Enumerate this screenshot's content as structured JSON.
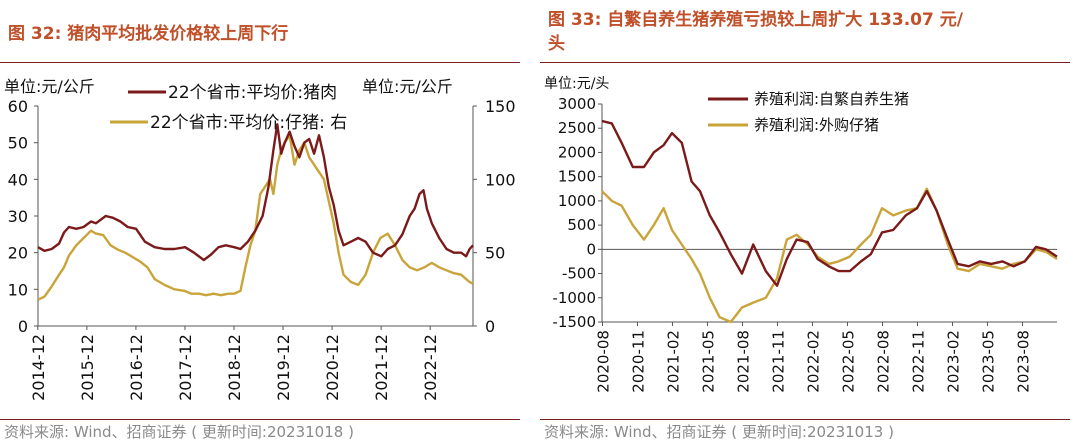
{
  "colors": {
    "title": "#c0502a",
    "rule": "#7a1f1f",
    "series_dark": "#7b1a1a",
    "series_gold": "#c9a43a",
    "source_text": "#8a8a8a"
  },
  "left": {
    "title": "图 32:  猪肉平均批发价格较上周下行",
    "source": "资料来源:  Wind、招商证券 ( 更新时间:20231018 )",
    "chart_data": {
      "type": "line",
      "title": "图 32: 猪肉平均批发价格较上周下行",
      "left_unit": "单位:元/公斤",
      "right_unit": "单位:元/公斤",
      "ylim_left": [
        0,
        60
      ],
      "ylim_right": [
        0,
        150
      ],
      "left_ticks": [
        "60",
        "50",
        "40",
        "30",
        "20",
        "10",
        "0"
      ],
      "right_ticks": [
        "150",
        "100",
        "50",
        "0"
      ],
      "x_tick_labels": [
        "2014-12",
        "2015-12",
        "2016-12",
        "2017-12",
        "2018-12",
        "2019-12",
        "2020-12",
        "2021-12",
        "2022-12"
      ],
      "x_range": [
        2014.92,
        2023.79
      ],
      "legend": [
        "22个省市:平均价:猪肉",
        "22个省市:平均价:仔猪:  右"
      ],
      "series": [
        {
          "name": "22个省市:平均价:猪肉",
          "axis": "left",
          "color": "#7b1a1a",
          "x": [
            2014.92,
            2015.05,
            2015.2,
            2015.35,
            2015.45,
            2015.55,
            2015.7,
            2015.85,
            2016.0,
            2016.1,
            2016.3,
            2016.45,
            2016.6,
            2016.75,
            2016.92,
            2017.1,
            2017.3,
            2017.5,
            2017.7,
            2017.92,
            2018.1,
            2018.3,
            2018.45,
            2018.6,
            2018.75,
            2018.92,
            2019.05,
            2019.2,
            2019.35,
            2019.5,
            2019.62,
            2019.72,
            2019.8,
            2019.88,
            2019.95,
            2020.05,
            2020.15,
            2020.25,
            2020.35,
            2020.45,
            2020.55,
            2020.65,
            2020.75,
            2020.85,
            2020.95,
            2021.05,
            2021.15,
            2021.3,
            2021.45,
            2021.6,
            2021.75,
            2021.92,
            2022.05,
            2022.2,
            2022.35,
            2022.5,
            2022.6,
            2022.7,
            2022.78,
            2022.85,
            2022.95,
            2023.1,
            2023.25,
            2023.4,
            2023.55,
            2023.65,
            2023.72,
            2023.79
          ],
          "y": [
            21.5,
            20.5,
            21,
            22.5,
            25.5,
            27,
            26.5,
            27,
            28.5,
            28,
            30,
            29.5,
            28.5,
            27,
            26.5,
            23,
            21.5,
            21,
            21,
            21.5,
            20,
            18,
            19.5,
            21.5,
            22,
            21.5,
            21,
            23,
            26,
            30,
            38,
            48,
            55,
            47,
            50,
            53,
            49,
            46,
            50,
            51,
            47,
            52,
            46,
            38,
            33,
            26,
            22,
            23,
            24,
            23,
            20,
            19,
            21,
            22,
            25,
            30,
            32,
            36,
            37,
            32,
            28,
            24,
            21,
            20,
            20,
            19,
            21,
            22
          ]
        },
        {
          "name": "22个省市:平均价:仔猪:  右",
          "axis": "right",
          "color": "#c9a43a",
          "x": [
            2014.92,
            2015.05,
            2015.2,
            2015.35,
            2015.45,
            2015.55,
            2015.7,
            2015.85,
            2016.0,
            2016.1,
            2016.25,
            2016.4,
            2016.55,
            2016.7,
            2016.85,
            2017.0,
            2017.15,
            2017.3,
            2017.5,
            2017.7,
            2017.9,
            2018.05,
            2018.2,
            2018.35,
            2018.5,
            2018.65,
            2018.8,
            2018.92,
            2019.05,
            2019.15,
            2019.25,
            2019.35,
            2019.45,
            2019.55,
            2019.65,
            2019.72,
            2019.8,
            2019.88,
            2019.95,
            2020.05,
            2020.15,
            2020.25,
            2020.35,
            2020.45,
            2020.55,
            2020.65,
            2020.75,
            2020.85,
            2020.95,
            2021.05,
            2021.15,
            2021.3,
            2021.45,
            2021.6,
            2021.75,
            2021.9,
            2022.05,
            2022.2,
            2022.35,
            2022.5,
            2022.65,
            2022.8,
            2022.95,
            2023.1,
            2023.25,
            2023.4,
            2023.55,
            2023.65,
            2023.72,
            2023.79
          ],
          "y": [
            18,
            20,
            27,
            35,
            40,
            48,
            55,
            60,
            65,
            63,
            62,
            55,
            52,
            50,
            47,
            44,
            40,
            32,
            28,
            25,
            24,
            22,
            22,
            21,
            22,
            21,
            22,
            22,
            24,
            40,
            55,
            65,
            90,
            95,
            100,
            90,
            110,
            120,
            125,
            130,
            110,
            120,
            125,
            115,
            110,
            105,
            100,
            85,
            70,
            50,
            35,
            30,
            28,
            35,
            50,
            60,
            63,
            55,
            45,
            40,
            38,
            40,
            43,
            40,
            38,
            36,
            35,
            32,
            30,
            29
          ]
        }
      ]
    }
  },
  "right": {
    "title_line1": "图 33:  自繁自养生猪养殖亏损较上周扩大 133.07 元/",
    "title_line2": "头",
    "source": "资料来源:  Wind、招商证券 ( 更新时间:20231013 )",
    "chart_data": {
      "type": "line",
      "title": "图 33: 自繁自养生猪养殖亏损较上周扩大 133.07 元/头",
      "unit": "单位:元/头",
      "ylim": [
        -1500,
        3000
      ],
      "y_ticks": [
        "3000",
        "2500",
        "2000",
        "1500",
        "1000",
        "500",
        "0",
        "-500",
        "-1000",
        "-1500"
      ],
      "x_tick_labels": [
        "2020-08",
        "2020-11",
        "2021-02",
        "2021-05",
        "2021-08",
        "2021-11",
        "2022-02",
        "2022-05",
        "2022-08",
        "2022-11",
        "2023-02",
        "2023-05",
        "2023-08"
      ],
      "x_range": [
        2020.58,
        2023.83
      ],
      "legend": [
        "养殖利润:自繁自养生猪",
        "养殖利润:外购仔猪"
      ],
      "series": [
        {
          "name": "养殖利润:自繁自养生猪",
          "color": "#7b1a1a",
          "x": [
            2020.58,
            2020.65,
            2020.72,
            2020.8,
            2020.88,
            2020.95,
            2021.02,
            2021.08,
            2021.15,
            2021.22,
            2021.28,
            2021.35,
            2021.42,
            2021.5,
            2021.58,
            2021.66,
            2021.75,
            2021.83,
            2021.9,
            2021.97,
            2022.05,
            2022.12,
            2022.2,
            2022.27,
            2022.35,
            2022.43,
            2022.5,
            2022.58,
            2022.66,
            2022.75,
            2022.83,
            2022.9,
            2022.97,
            2023.05,
            2023.12,
            2023.2,
            2023.28,
            2023.36,
            2023.44,
            2023.52,
            2023.6,
            2023.68,
            2023.75,
            2023.83
          ],
          "y": [
            2650,
            2600,
            2200,
            1700,
            1700,
            2000,
            2150,
            2400,
            2200,
            1400,
            1200,
            700,
            350,
            -100,
            -500,
            100,
            -450,
            -750,
            -200,
            200,
            150,
            -200,
            -350,
            -450,
            -450,
            -250,
            -100,
            350,
            400,
            700,
            850,
            1200,
            800,
            200,
            -300,
            -350,
            -250,
            -300,
            -250,
            -350,
            -250,
            50,
            0,
            -150
          ]
        },
        {
          "name": "养殖利润:外购仔猪",
          "color": "#c9a43a",
          "x": [
            2020.58,
            2020.65,
            2020.72,
            2020.8,
            2020.88,
            2020.95,
            2021.02,
            2021.08,
            2021.15,
            2021.22,
            2021.28,
            2021.35,
            2021.42,
            2021.5,
            2021.58,
            2021.66,
            2021.75,
            2021.83,
            2021.9,
            2021.97,
            2022.05,
            2022.12,
            2022.2,
            2022.27,
            2022.35,
            2022.43,
            2022.5,
            2022.58,
            2022.66,
            2022.75,
            2022.83,
            2022.9,
            2022.97,
            2023.05,
            2023.12,
            2023.2,
            2023.28,
            2023.36,
            2023.44,
            2023.52,
            2023.6,
            2023.68,
            2023.75,
            2023.83
          ],
          "y": [
            1200,
            1000,
            900,
            500,
            200,
            500,
            850,
            400,
            100,
            -200,
            -500,
            -1000,
            -1400,
            -1500,
            -1200,
            -1100,
            -1000,
            -600,
            200,
            300,
            100,
            -150,
            -300,
            -250,
            -150,
            100,
            300,
            850,
            700,
            800,
            850,
            1250,
            800,
            100,
            -400,
            -450,
            -300,
            -350,
            -400,
            -300,
            -250,
            0,
            -50,
            -200
          ]
        }
      ]
    }
  }
}
